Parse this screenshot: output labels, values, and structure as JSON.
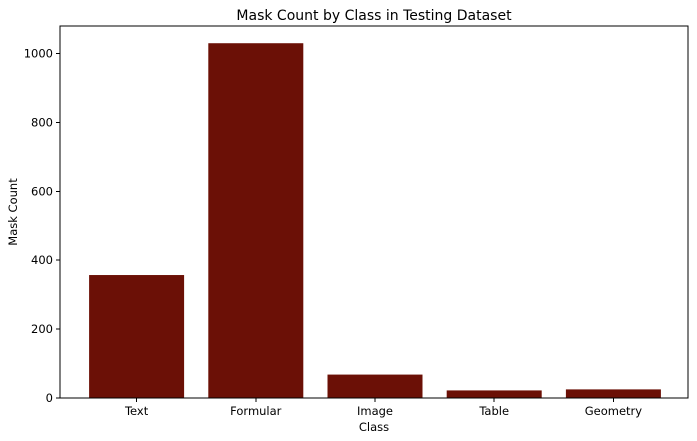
{
  "chart_data": {
    "type": "bar",
    "title": "Mask Count by Class in Testing Dataset",
    "xlabel": "Class",
    "ylabel": "Mask Count",
    "categories": [
      "Text",
      "Formular",
      "Image",
      "Table",
      "Geometry"
    ],
    "values": [
      357,
      1030,
      68,
      22,
      25
    ],
    "ylim": [
      0,
      1080
    ],
    "yticks": [
      0,
      200,
      400,
      600,
      800,
      1000
    ],
    "ytick_labels": [
      "0",
      "200",
      "400",
      "600",
      "800",
      "1000"
    ],
    "grid": false,
    "legend": null,
    "bar_color": "#6b1006"
  }
}
